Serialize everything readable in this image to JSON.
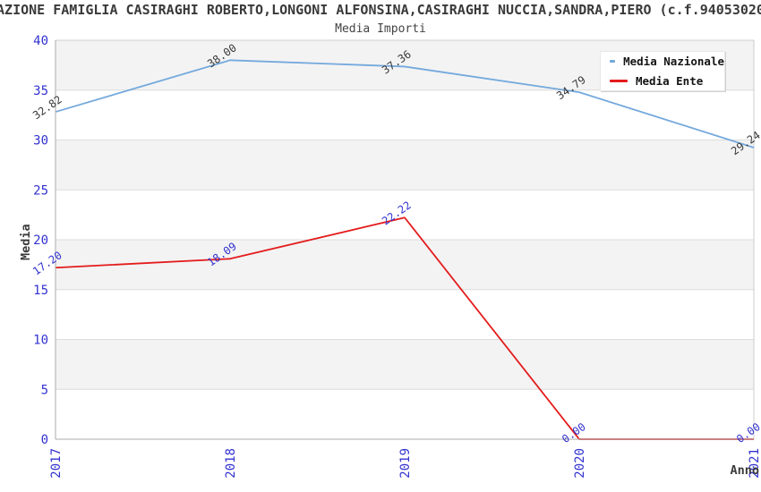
{
  "title": "AZIONE FAMIGLIA CASIRAGHI ROBERTO,LONGONI ALFONSINA,CASIRAGHI NUCCIA,SANDRA,PIERO (c.f.94053020",
  "subtitle": "Media Importi",
  "legend": {
    "items": [
      {
        "label": "Media Nazionale",
        "color": "#74a9dd"
      },
      {
        "label": "Media Ente",
        "color": "#e41b1b"
      }
    ]
  },
  "chart_data": {
    "type": "line",
    "title": "Media Importi",
    "x": [
      2017,
      2018,
      2019,
      2020,
      2021
    ],
    "series": [
      {
        "name": "Media Nazionale",
        "color": "#74a9dd",
        "label_color": "#3a3a3a",
        "values": [
          32.82,
          38.0,
          37.36,
          34.79,
          29.24
        ],
        "point_labels": [
          "32.82",
          "38.00",
          "37.36",
          "34.79",
          "29.24"
        ]
      },
      {
        "name": "Media Ente",
        "color": "#e41b1b",
        "label_color": "#3232cf",
        "values": [
          17.2,
          18.09,
          22.22,
          0.0,
          0.0
        ],
        "point_labels": [
          "17.20",
          "18.09",
          "22.22",
          "0.00",
          "0.00"
        ]
      }
    ],
    "xlabel": "Anno",
    "ylabel": "Media",
    "ylim": [
      0,
      40
    ],
    "yticks": [
      0,
      5,
      10,
      15,
      20,
      25,
      30,
      35,
      40
    ],
    "grid": "horizontal",
    "alternating_bands": true,
    "legend_position": "top-right",
    "colors": {
      "tick_label": "#3232cf",
      "band": "#f3f3f3",
      "gridline": "#dcdcdc",
      "axis": "#ababab",
      "plot_border": "#cccccc",
      "text": "#3a3a3a"
    }
  }
}
